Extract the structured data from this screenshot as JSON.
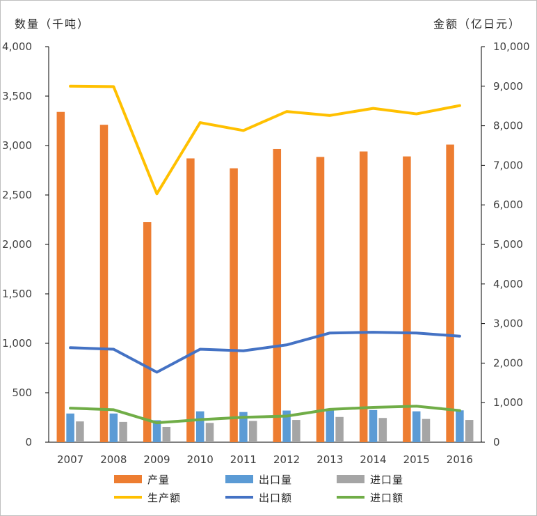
{
  "chart_data": {
    "type": "bar",
    "categories": [
      "2007",
      "2008",
      "2009",
      "2010",
      "2011",
      "2012",
      "2013",
      "2014",
      "2015",
      "2016"
    ],
    "ylabel_left": "数量（千吨）",
    "ylabel_right": "金额（亿日元）",
    "ylim_left": [
      0,
      4000
    ],
    "ylim_right": [
      0,
      10000
    ],
    "yticks_left": [
      "0",
      "500",
      "1,000",
      "1,500",
      "2,000",
      "2,500",
      "3,000",
      "3,500",
      "4,000"
    ],
    "yticks_right": [
      "0",
      "1,000",
      "2,000",
      "3,000",
      "4,000",
      "5,000",
      "6,000",
      "7,000",
      "8,000",
      "9,000",
      "10,000"
    ],
    "grid": false,
    "legend_position": "bottom",
    "bar_series": [
      {
        "name": "产量",
        "color": "#ED7D31",
        "axis": "left",
        "values": [
          3340,
          3210,
          2225,
          2870,
          2770,
          2965,
          2885,
          2940,
          2890,
          3010
        ]
      },
      {
        "name": "出口量",
        "color": "#5B9BD5",
        "axis": "left",
        "values": [
          290,
          290,
          222,
          312,
          305,
          320,
          330,
          325,
          312,
          322
        ]
      },
      {
        "name": "进口量",
        "color": "#A5A5A5",
        "axis": "left",
        "values": [
          210,
          205,
          155,
          195,
          215,
          225,
          255,
          245,
          235,
          225
        ]
      }
    ],
    "line_series": [
      {
        "name": "生产额",
        "color": "#FFC000",
        "axis": "right",
        "values": [
          9000,
          8990,
          6280,
          8080,
          7880,
          8360,
          8260,
          8440,
          8300,
          8510
        ]
      },
      {
        "name": "出口额",
        "color": "#4472C4",
        "axis": "right",
        "values": [
          2390,
          2350,
          1770,
          2350,
          2310,
          2460,
          2760,
          2780,
          2760,
          2680
        ]
      },
      {
        "name": "进口额",
        "color": "#70AD47",
        "axis": "right",
        "values": [
          860,
          820,
          490,
          570,
          630,
          660,
          830,
          880,
          910,
          800
        ]
      }
    ]
  }
}
